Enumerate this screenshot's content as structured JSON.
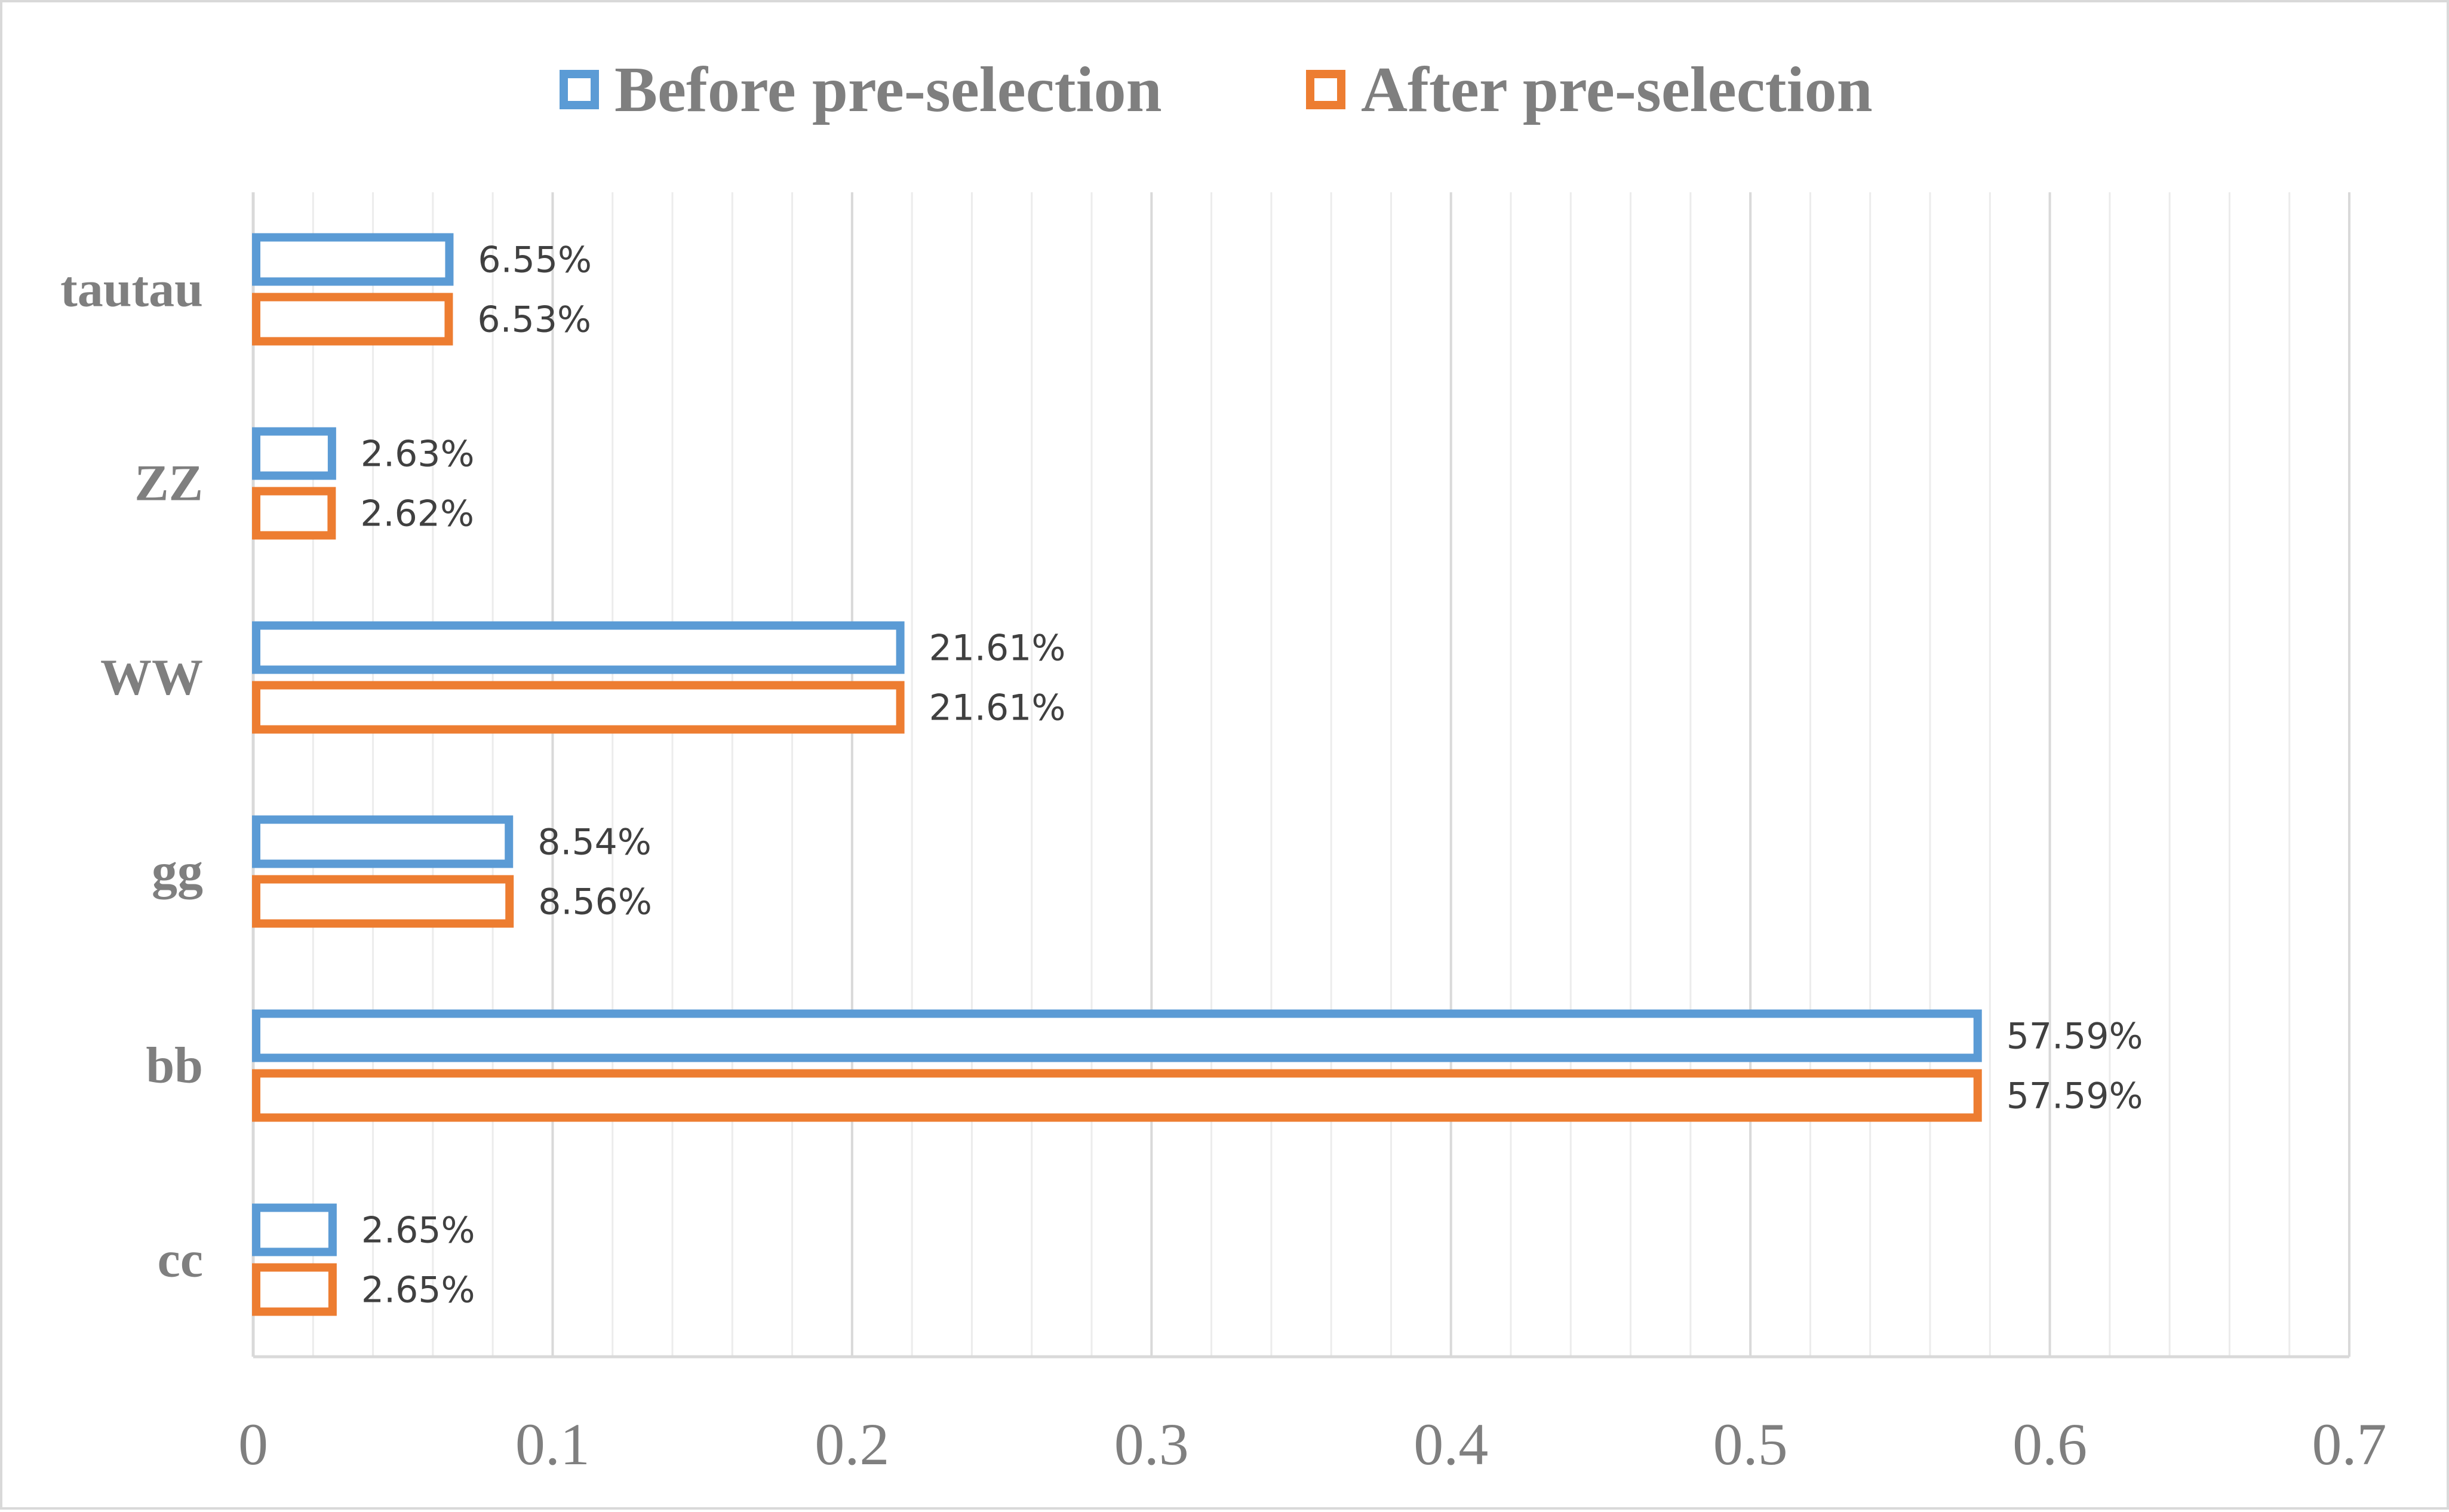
{
  "chart_data": {
    "type": "bar",
    "orientation": "horizontal",
    "categories": [
      "tautau",
      "ZZ",
      "WW",
      "gg",
      "bb",
      "cc"
    ],
    "series": [
      {
        "name": "Before pre-selection",
        "color": "#5b9bd5",
        "values": [
          0.0655,
          0.0263,
          0.2161,
          0.0854,
          0.5759,
          0.0265
        ],
        "labels": [
          "6.55%",
          "2.63%",
          "21.61%",
          "8.54%",
          "57.59%",
          "2.65%"
        ]
      },
      {
        "name": "After pre-selection",
        "color": "#ed7d31",
        "values": [
          0.0653,
          0.0262,
          0.2161,
          0.0856,
          0.5759,
          0.0265
        ],
        "labels": [
          "6.53%",
          "2.62%",
          "21.61%",
          "8.56%",
          "57.59%",
          "2.65%"
        ]
      }
    ],
    "xlim": [
      0,
      0.7
    ],
    "xticks": [
      "0",
      "0.1",
      "0.2",
      "0.3",
      "0.4",
      "0.5",
      "0.6",
      "0.7"
    ],
    "grid": true,
    "legend_position": "top-center",
    "title": "",
    "xlabel": "",
    "ylabel": ""
  }
}
